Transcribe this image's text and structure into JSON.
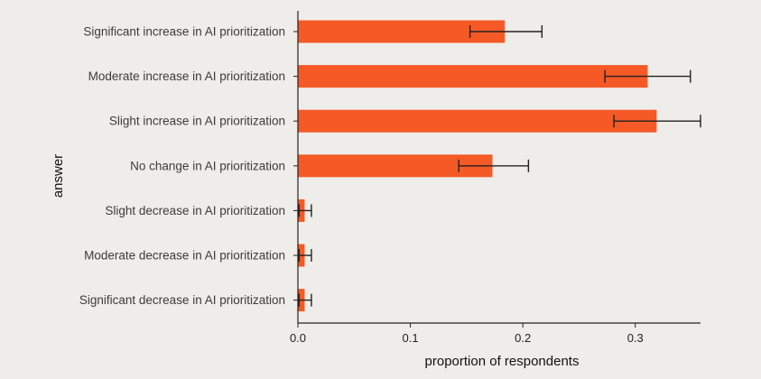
{
  "chart_data": {
    "type": "bar",
    "orientation": "horizontal",
    "categories": [
      "Significant increase in AI prioritization",
      "Moderate increase in AI prioritization",
      "Slight increase in AI prioritization",
      "No change in AI prioritization",
      "Slight decrease in AI prioritization",
      "Moderate decrease in AI prioritization",
      "Significant decrease in AI prioritization"
    ],
    "values": [
      0.184,
      0.311,
      0.319,
      0.173,
      0.006,
      0.006,
      0.006
    ],
    "error_low": [
      0.153,
      0.273,
      0.281,
      0.143,
      0.001,
      0.001,
      0.001
    ],
    "error_high": [
      0.217,
      0.349,
      0.358,
      0.205,
      0.012,
      0.012,
      0.012
    ],
    "xlabel": "proportion of respondents",
    "ylabel": "answer",
    "xlim": [
      0,
      0.358
    ],
    "xticks": [
      0.0,
      0.1,
      0.2,
      0.3
    ],
    "xtick_labels": [
      "0.0",
      "0.1",
      "0.2",
      "0.3"
    ],
    "grid": false,
    "bar_color": "#f55a26",
    "background": "#efedea"
  }
}
